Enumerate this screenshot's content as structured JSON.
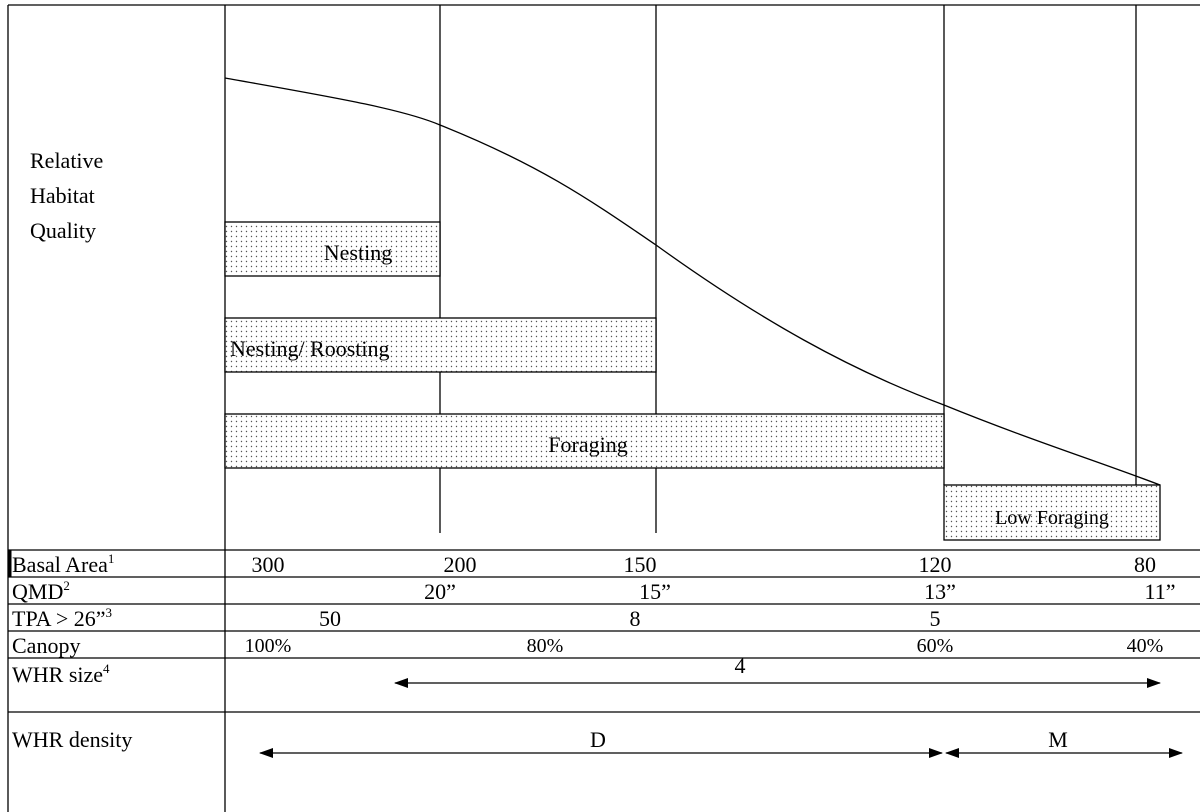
{
  "y_axis_label": [
    "Relative",
    "Habitat",
    "Quality"
  ],
  "bars": [
    {
      "label": "Nesting"
    },
    {
      "label": "Nesting/ Roosting"
    },
    {
      "label": "Foraging"
    },
    {
      "label": "Low Foraging"
    }
  ],
  "rows": [
    {
      "label": "Basal Area",
      "sup": "1",
      "values": [
        "300",
        "200",
        "150",
        "120",
        "80"
      ]
    },
    {
      "label": "QMD",
      "sup": "2",
      "values": [
        "20”",
        "15”",
        "13”",
        "11”"
      ]
    },
    {
      "label": "TPA > 26”",
      "sup": "3",
      "values": [
        "50",
        "8",
        "5"
      ]
    },
    {
      "label": "Canopy",
      "values": [
        "100%",
        "80%",
        "60%",
        "40%"
      ]
    },
    {
      "label": "WHR size",
      "sup": "4",
      "values": [
        "4"
      ]
    },
    {
      "label": "WHR density",
      "values": [
        "D",
        "M"
      ]
    }
  ]
}
